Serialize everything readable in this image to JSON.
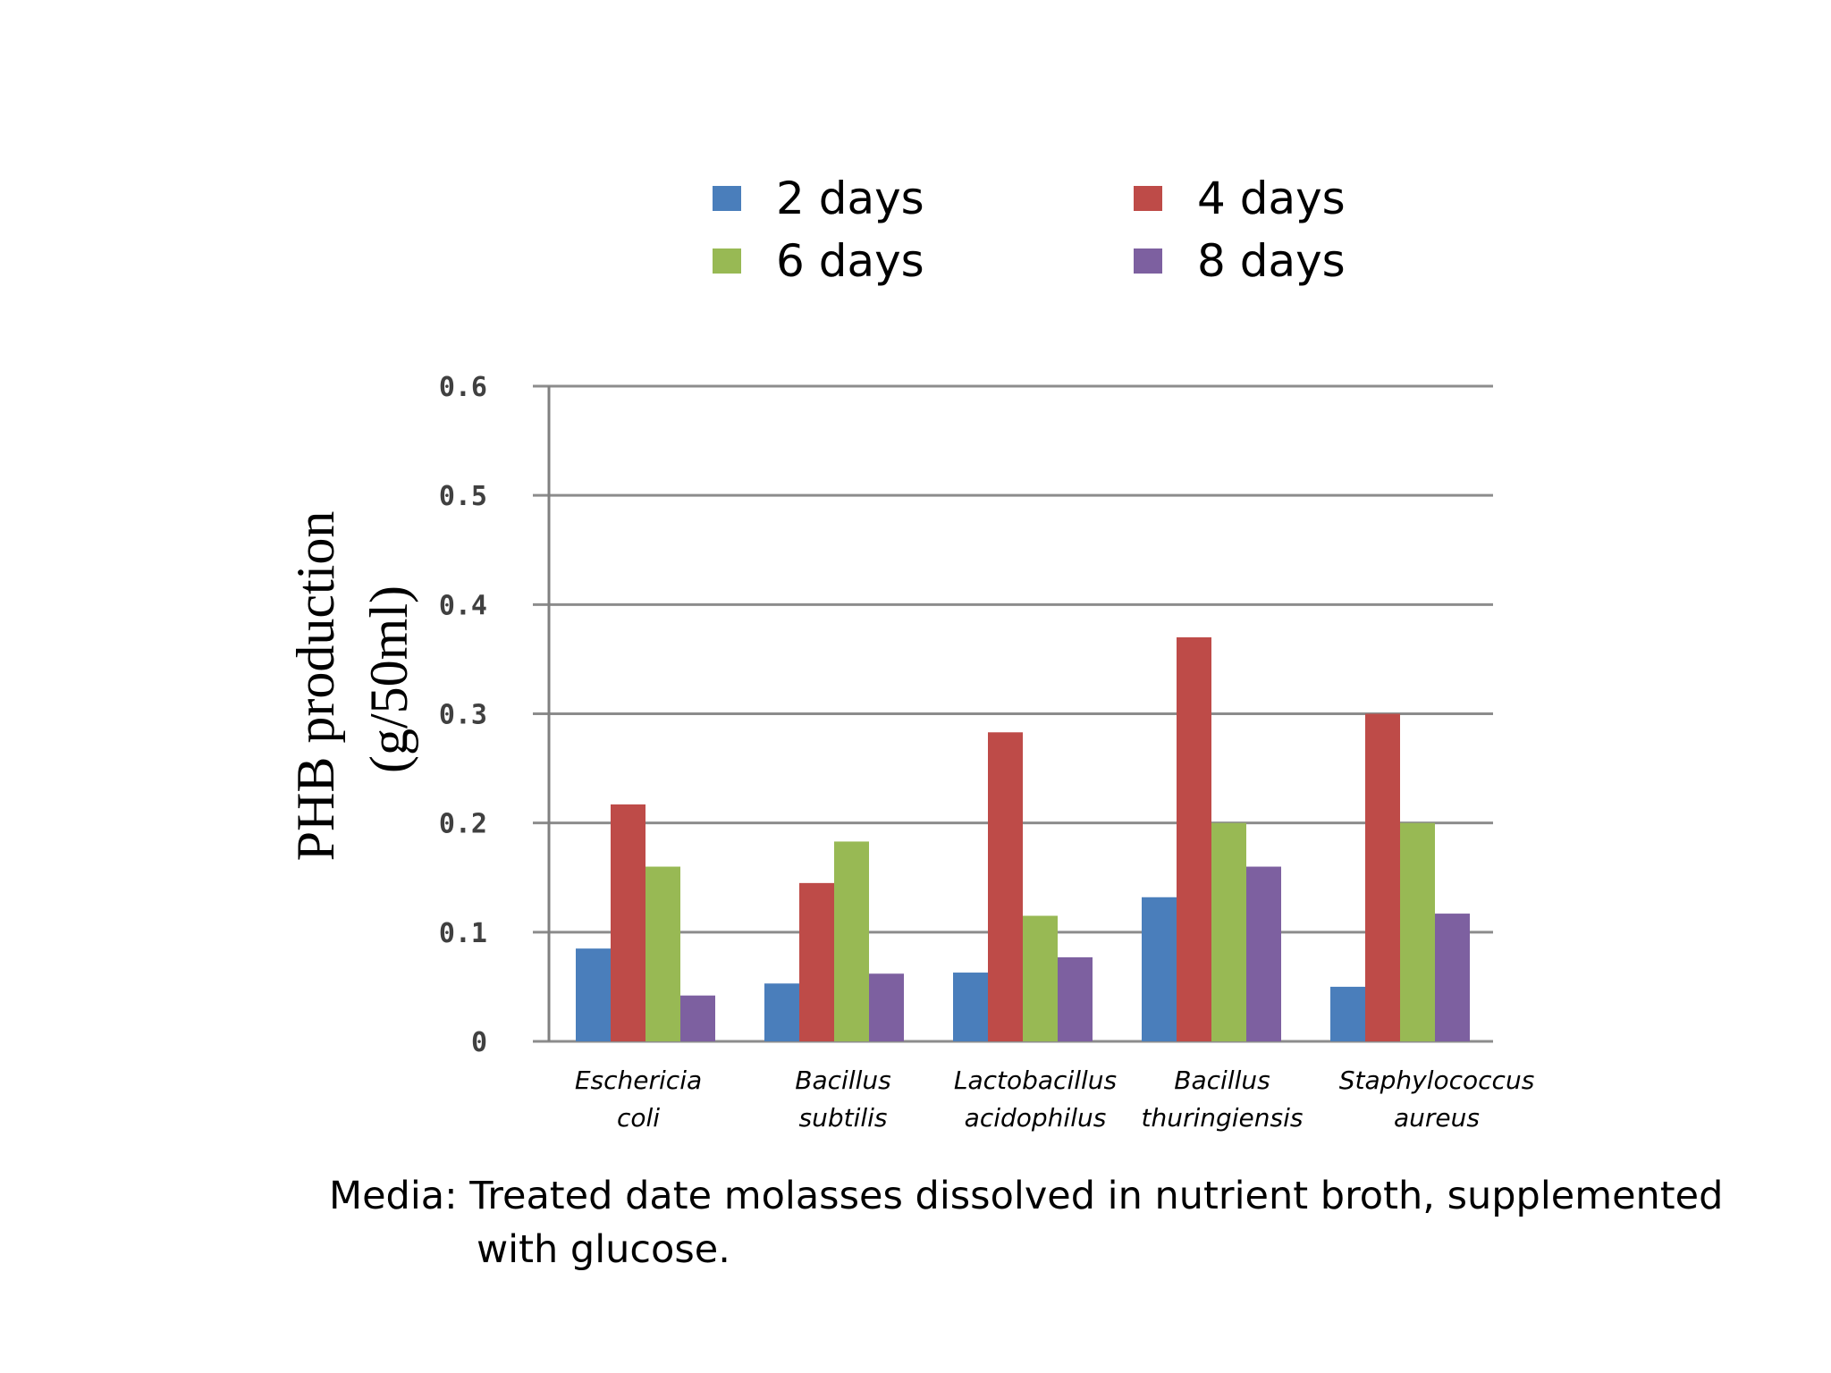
{
  "chart_data": {
    "type": "bar",
    "title": "",
    "xlabel": "",
    "ylabel": "PHB production (g/50ml)",
    "ylabel_lines": [
      "PHB production",
      "(g/50ml)"
    ],
    "ylim": [
      0,
      0.6
    ],
    "yticks": [
      "0.6",
      "0.5",
      "0.4",
      "0.3",
      "0.2",
      "0.1",
      "0"
    ],
    "ytick_values": [
      0.6,
      0.5,
      0.4,
      0.3,
      0.2,
      0.1,
      0
    ],
    "grid": true,
    "legend_position": "top",
    "categories": [
      [
        "Eschericia",
        "coli"
      ],
      [
        "Bacillus",
        "subtilis"
      ],
      [
        "Lactobacillus",
        "acidophilus"
      ],
      [
        "Bacillus",
        "thuringiensis"
      ],
      [
        "Staphylococcus",
        "aureus"
      ]
    ],
    "series": [
      {
        "name": "2 days",
        "color": "#4a7ebb",
        "values": [
          0.085,
          0.053,
          0.063,
          0.132,
          0.05
        ]
      },
      {
        "name": "4 days",
        "color": "#be4b48",
        "values": [
          0.217,
          0.145,
          0.283,
          0.37,
          0.3
        ]
      },
      {
        "name": "6 days",
        "color": "#98b954",
        "values": [
          0.16,
          0.183,
          0.115,
          0.2,
          0.2
        ]
      },
      {
        "name": "8 days",
        "color": "#7d60a0",
        "values": [
          0.042,
          0.062,
          0.077,
          0.16,
          0.117
        ]
      }
    ]
  },
  "caption": {
    "line1": "Media: Treated date molasses dissolved in nutrient broth, supplemented",
    "line2": "with glucose."
  }
}
